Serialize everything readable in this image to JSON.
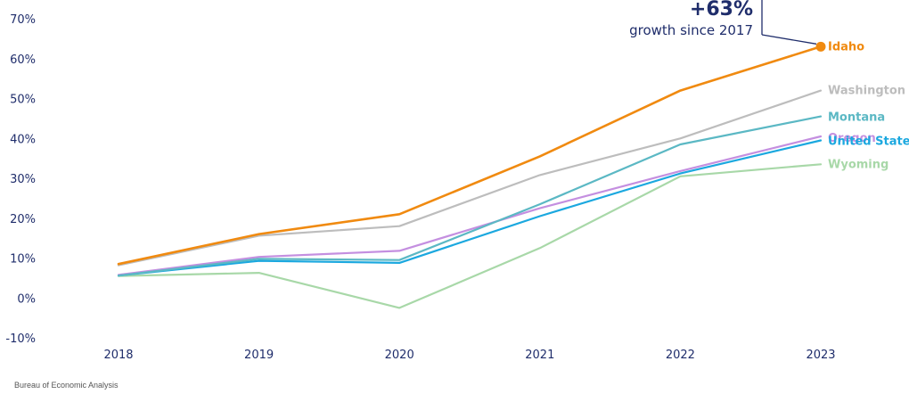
{
  "chart_data": {
    "type": "line",
    "title": "",
    "xlabel": "",
    "ylabel": "",
    "x": [
      "2018",
      "2019",
      "2020",
      "2021",
      "2022",
      "2023"
    ],
    "ylim": [
      -10,
      70
    ],
    "yticks": [
      -10,
      0,
      10,
      20,
      30,
      40,
      50,
      60,
      70
    ],
    "ytick_labels": [
      "-10%",
      "0%",
      "10%",
      "20%",
      "30%",
      "40%",
      "50%",
      "60%",
      "70%"
    ],
    "grid": false,
    "legend": "end-of-line labels (right)",
    "series": [
      {
        "name": "Wyoming",
        "color": "#a8d8a8",
        "values": [
          5.5,
          6.3,
          -2.5,
          12.5,
          30.5,
          33.5
        ]
      },
      {
        "name": "Oregon",
        "color": "#c48fe0",
        "values": [
          5.8,
          10.3,
          11.8,
          22.5,
          31.8,
          40.5
        ]
      },
      {
        "name": "United States",
        "color": "#1ba8df",
        "values": [
          5.6,
          9.3,
          8.8,
          20.5,
          31.2,
          39.5
        ]
      },
      {
        "name": "Montana",
        "color": "#5bb8c4",
        "values": [
          5.6,
          9.8,
          9.5,
          23.5,
          38.5,
          45.5
        ]
      },
      {
        "name": "Washington",
        "color": "#bdbdbd",
        "values": [
          8.2,
          15.6,
          18.0,
          30.8,
          40.0,
          52.0
        ]
      },
      {
        "name": "Idaho",
        "color": "#f08a10",
        "values": [
          8.5,
          16.0,
          21.0,
          35.5,
          52.0,
          63.0
        ]
      }
    ],
    "annotation": {
      "value": "+63%",
      "text": "growth since 2017",
      "series": "Idaho",
      "x": "2023"
    }
  },
  "source": "Bureau of Economic Analysis"
}
